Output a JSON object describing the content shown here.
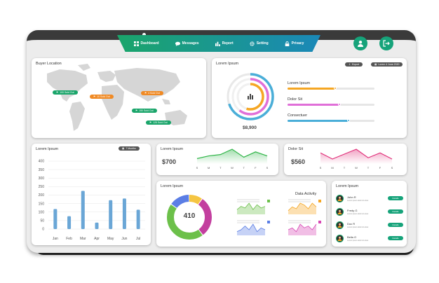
{
  "nav": {
    "items": [
      {
        "label": "Dashboard",
        "icon": "dashboard-icon"
      },
      {
        "label": "Messages",
        "icon": "chat-icon"
      },
      {
        "label": "Report",
        "icon": "bar-chart-icon"
      },
      {
        "label": "Setting",
        "icon": "gear-icon"
      },
      {
        "label": "Privacy",
        "icon": "lock-icon"
      }
    ],
    "user_icon": "user-icon",
    "logout_icon": "logout-icon",
    "accent": "#16a37a"
  },
  "buyer_location": {
    "title": "Buyer Location",
    "markers": [
      {
        "label": "100 Sold Out",
        "color": "#1aa56a"
      },
      {
        "label": "10 Sold Out",
        "color": "#f08a24"
      },
      {
        "label": "4 Sold Out",
        "color": "#f08a24"
      },
      {
        "label": "150 Sold Out",
        "color": "#1aa56a"
      },
      {
        "label": "125 Sold Out",
        "color": "#1aa56a"
      }
    ]
  },
  "radial": {
    "title": "Lorem Ipsum",
    "export_label": "Export",
    "date_label": "Lorem 4 June 2020",
    "total": "$8,900",
    "bars": [
      {
        "label": "Lorem Ipsum",
        "value": 0.55,
        "color": "#f5a623"
      },
      {
        "label": "Dolor Sit",
        "value": 0.6,
        "color": "#e06fd8"
      },
      {
        "label": "Consectuer",
        "value": 0.7,
        "color": "#4aaed8"
      }
    ]
  },
  "monthly": {
    "title": "Lorem Ipsum",
    "period_label": "7 Months",
    "chart_data": {
      "type": "bar",
      "categories": [
        "Jan",
        "Feb",
        "Mar",
        "Apr",
        "May",
        "Jun",
        "Jul"
      ],
      "values": [
        118,
        76,
        225,
        38,
        170,
        180,
        114
      ],
      "ylim": [
        0,
        400
      ],
      "yticks": [
        0,
        50,
        100,
        150,
        200,
        250,
        300,
        350,
        400
      ],
      "color": "#6aa6d6"
    }
  },
  "spark1": {
    "title": "Lorem Ipsum",
    "value": "$700",
    "chart_data": {
      "type": "area",
      "x": [
        "S",
        "M",
        "T",
        "W",
        "T",
        "F",
        "S"
      ],
      "values": [
        4,
        6,
        7,
        11,
        5,
        9,
        6
      ],
      "color": "#2fb548"
    }
  },
  "spark2": {
    "title": "Dolor Sit",
    "value": "$560",
    "chart_data": {
      "type": "area",
      "x": [
        "S",
        "M",
        "T",
        "W",
        "T",
        "F",
        "S"
      ],
      "values": [
        9,
        4,
        8,
        12,
        5,
        9,
        4
      ],
      "color": "#e0307a"
    }
  },
  "donut": {
    "title": "Lorem Ipsum",
    "center": "410",
    "activity_title": "Data Activity",
    "segments": [
      {
        "value": 10,
        "color": "#f5c542"
      },
      {
        "value": 30,
        "color": "#c33f9f"
      },
      {
        "value": 45,
        "color": "#6cc04a"
      },
      {
        "value": 15,
        "color": "#5b7ee5"
      }
    ],
    "minis": [
      {
        "color": "#6cc04a",
        "values": [
          3,
          5,
          4,
          7,
          3,
          6,
          4,
          5
        ]
      },
      {
        "color": "#f5a623",
        "values": [
          2,
          4,
          3,
          6,
          5,
          3,
          6,
          4
        ]
      },
      {
        "color": "#5b7ee5",
        "values": [
          2,
          3,
          5,
          3,
          6,
          2,
          4,
          3
        ]
      },
      {
        "color": "#d846b4",
        "values": [
          3,
          4,
          2,
          6,
          4,
          5,
          3,
          6
        ]
      }
    ]
  },
  "people": {
    "title": "Lorem Ipsum",
    "items": [
      {
        "name": "John R",
        "subtitle": "Lorem ipsum dolor sit amet",
        "button": "Details"
      },
      {
        "name": "Fredy G",
        "subtitle": "Lorem ipsum dolor sit amet",
        "button": "Details"
      },
      {
        "name": "Doc R",
        "subtitle": "Lorem ipsum dolor sit amet",
        "button": "Details"
      },
      {
        "name": "Bella O",
        "subtitle": "Lorem ipsum dolor sit amet",
        "button": "Details"
      }
    ]
  }
}
